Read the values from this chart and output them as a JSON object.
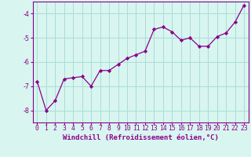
{
  "x": [
    0,
    1,
    2,
    3,
    4,
    5,
    6,
    7,
    8,
    9,
    10,
    11,
    12,
    13,
    14,
    15,
    16,
    17,
    18,
    19,
    20,
    21,
    22,
    23
  ],
  "y": [
    -6.8,
    -8.0,
    -7.6,
    -6.7,
    -6.65,
    -6.6,
    -7.0,
    -6.35,
    -6.35,
    -6.1,
    -5.85,
    -5.7,
    -5.55,
    -4.65,
    -4.55,
    -4.75,
    -5.1,
    -5.0,
    -5.35,
    -5.35,
    -4.95,
    -4.8,
    -4.35,
    -3.65
  ],
  "line_color": "#8B008B",
  "marker": "D",
  "marker_size": 2.2,
  "bg_color": "#d8f5f0",
  "grid_color": "#aaddd6",
  "xlabel": "Windchill (Refroidissement éolien,°C)",
  "ylim": [
    -8.5,
    -3.5
  ],
  "xlim": [
    -0.5,
    23.5
  ],
  "yticks": [
    -8,
    -7,
    -6,
    -5,
    -4
  ],
  "xtick_labels": [
    "0",
    "1",
    "2",
    "3",
    "4",
    "5",
    "6",
    "7",
    "8",
    "9",
    "10",
    "11",
    "12",
    "13",
    "14",
    "15",
    "16",
    "17",
    "18",
    "19",
    "20",
    "21",
    "22",
    "23"
  ],
  "tick_color": "#8B008B",
  "label_color": "#8B008B",
  "label_fontsize": 6.5,
  "tick_fontsize": 5.8,
  "line_width": 0.9,
  "spine_color": "#8B008B"
}
